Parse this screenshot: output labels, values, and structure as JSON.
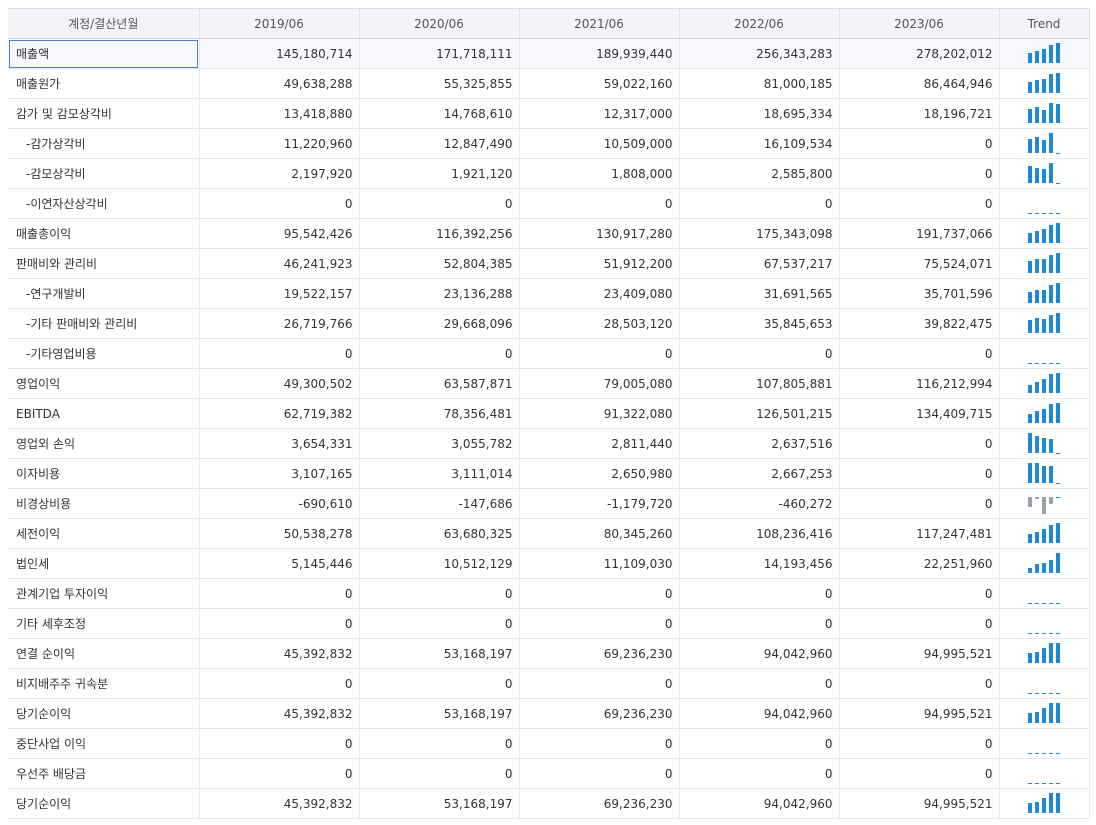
{
  "header": {
    "account_label": "계정/결산년월",
    "years": [
      "2019/06",
      "2020/06",
      "2021/06",
      "2022/06",
      "2023/06"
    ],
    "trend_label": "Trend"
  },
  "colors": {
    "positive_bar": "#1f88d6",
    "negative_bar": "#9aa1a9",
    "zero_tick": "#1f88d6"
  },
  "rows": [
    {
      "name": "매출액",
      "values": [
        145180714,
        171718111,
        189939440,
        256343283,
        278202012
      ],
      "display": [
        "145,180,714",
        "171,718,111",
        "189,939,440",
        "256,343,283",
        "278,202,012"
      ],
      "sub": false,
      "selected": true
    },
    {
      "name": "매출원가",
      "values": [
        49638288,
        55325855,
        59022160,
        81000185,
        86464946
      ],
      "display": [
        "49,638,288",
        "55,325,855",
        "59,022,160",
        "81,000,185",
        "86,464,946"
      ],
      "sub": false
    },
    {
      "name": "감가 및 감모상각비",
      "values": [
        13418880,
        14768610,
        12317000,
        18695334,
        18196721
      ],
      "display": [
        "13,418,880",
        "14,768,610",
        "12,317,000",
        "18,695,334",
        "18,196,721"
      ],
      "sub": false
    },
    {
      "name": "-감가상각비",
      "values": [
        11220960,
        12847490,
        10509000,
        16109534,
        0
      ],
      "display": [
        "11,220,960",
        "12,847,490",
        "10,509,000",
        "16,109,534",
        "0"
      ],
      "sub": true
    },
    {
      "name": "-감모상각비",
      "values": [
        2197920,
        1921120,
        1808000,
        2585800,
        0
      ],
      "display": [
        "2,197,920",
        "1,921,120",
        "1,808,000",
        "2,585,800",
        "0"
      ],
      "sub": true
    },
    {
      "name": "-이연자산상각비",
      "values": [
        0,
        0,
        0,
        0,
        0
      ],
      "display": [
        "0",
        "0",
        "0",
        "0",
        "0"
      ],
      "sub": true
    },
    {
      "name": "매출총이익",
      "values": [
        95542426,
        116392256,
        130917280,
        175343098,
        191737066
      ],
      "display": [
        "95,542,426",
        "116,392,256",
        "130,917,280",
        "175,343,098",
        "191,737,066"
      ],
      "sub": false
    },
    {
      "name": "판매비와 관리비",
      "values": [
        46241923,
        52804385,
        51912200,
        67537217,
        75524071
      ],
      "display": [
        "46,241,923",
        "52,804,385",
        "51,912,200",
        "67,537,217",
        "75,524,071"
      ],
      "sub": false
    },
    {
      "name": "-연구개발비",
      "values": [
        19522157,
        23136288,
        23409080,
        31691565,
        35701596
      ],
      "display": [
        "19,522,157",
        "23,136,288",
        "23,409,080",
        "31,691,565",
        "35,701,596"
      ],
      "sub": true
    },
    {
      "name": "-기타 판매비와 관리비",
      "values": [
        26719766,
        29668096,
        28503120,
        35845653,
        39822475
      ],
      "display": [
        "26,719,766",
        "29,668,096",
        "28,503,120",
        "35,845,653",
        "39,822,475"
      ],
      "sub": true
    },
    {
      "name": "-기타영업비용",
      "values": [
        0,
        0,
        0,
        0,
        0
      ],
      "display": [
        "0",
        "0",
        "0",
        "0",
        "0"
      ],
      "sub": true
    },
    {
      "name": "영업이익",
      "values": [
        49300502,
        63587871,
        79005080,
        107805881,
        116212994
      ],
      "display": [
        "49,300,502",
        "63,587,871",
        "79,005,080",
        "107,805,881",
        "116,212,994"
      ],
      "sub": false
    },
    {
      "name": "EBITDA",
      "values": [
        62719382,
        78356481,
        91322080,
        126501215,
        134409715
      ],
      "display": [
        "62,719,382",
        "78,356,481",
        "91,322,080",
        "126,501,215",
        "134,409,715"
      ],
      "sub": false
    },
    {
      "name": "영업외 손익",
      "values": [
        3654331,
        3055782,
        2811440,
        2637516,
        0
      ],
      "display": [
        "3,654,331",
        "3,055,782",
        "2,811,440",
        "2,637,516",
        "0"
      ],
      "sub": false
    },
    {
      "name": "이자비용",
      "values": [
        3107165,
        3111014,
        2650980,
        2667253,
        0
      ],
      "display": [
        "3,107,165",
        "3,111,014",
        "2,650,980",
        "2,667,253",
        "0"
      ],
      "sub": false
    },
    {
      "name": "비경상비용",
      "values": [
        -690610,
        -147686,
        -1179720,
        -460272,
        0
      ],
      "display": [
        "-690,610",
        "-147,686",
        "-1,179,720",
        "-460,272",
        "0"
      ],
      "sub": false
    },
    {
      "name": "세전이익",
      "values": [
        50538278,
        63680325,
        80345260,
        108236416,
        117247481
      ],
      "display": [
        "50,538,278",
        "63,680,325",
        "80,345,260",
        "108,236,416",
        "117,247,481"
      ],
      "sub": false
    },
    {
      "name": "법인세",
      "values": [
        5145446,
        10512129,
        11109030,
        14193456,
        22251960
      ],
      "display": [
        "5,145,446",
        "10,512,129",
        "11,109,030",
        "14,193,456",
        "22,251,960"
      ],
      "sub": false
    },
    {
      "name": "관계기업 투자이익",
      "values": [
        0,
        0,
        0,
        0,
        0
      ],
      "display": [
        "0",
        "0",
        "0",
        "0",
        "0"
      ],
      "sub": false
    },
    {
      "name": "기타 세후조정",
      "values": [
        0,
        0,
        0,
        0,
        0
      ],
      "display": [
        "0",
        "0",
        "0",
        "0",
        "0"
      ],
      "sub": false
    },
    {
      "name": "연결 순이익",
      "values": [
        45392832,
        53168197,
        69236230,
        94042960,
        94995521
      ],
      "display": [
        "45,392,832",
        "53,168,197",
        "69,236,230",
        "94,042,960",
        "94,995,521"
      ],
      "sub": false
    },
    {
      "name": "비지배주주 귀속분",
      "values": [
        0,
        0,
        0,
        0,
        0
      ],
      "display": [
        "0",
        "0",
        "0",
        "0",
        "0"
      ],
      "sub": false
    },
    {
      "name": "당기순이익",
      "values": [
        45392832,
        53168197,
        69236230,
        94042960,
        94995521
      ],
      "display": [
        "45,392,832",
        "53,168,197",
        "69,236,230",
        "94,042,960",
        "94,995,521"
      ],
      "sub": false
    },
    {
      "name": "중단사업 이익",
      "values": [
        0,
        0,
        0,
        0,
        0
      ],
      "display": [
        "0",
        "0",
        "0",
        "0",
        "0"
      ],
      "sub": false
    },
    {
      "name": "우선주 배당금",
      "values": [
        0,
        0,
        0,
        0,
        0
      ],
      "display": [
        "0",
        "0",
        "0",
        "0",
        "0"
      ],
      "sub": false
    },
    {
      "name": "당기순이익",
      "values": [
        45392832,
        53168197,
        69236230,
        94042960,
        94995521
      ],
      "display": [
        "45,392,832",
        "53,168,197",
        "69,236,230",
        "94,042,960",
        "94,995,521"
      ],
      "sub": false
    }
  ]
}
